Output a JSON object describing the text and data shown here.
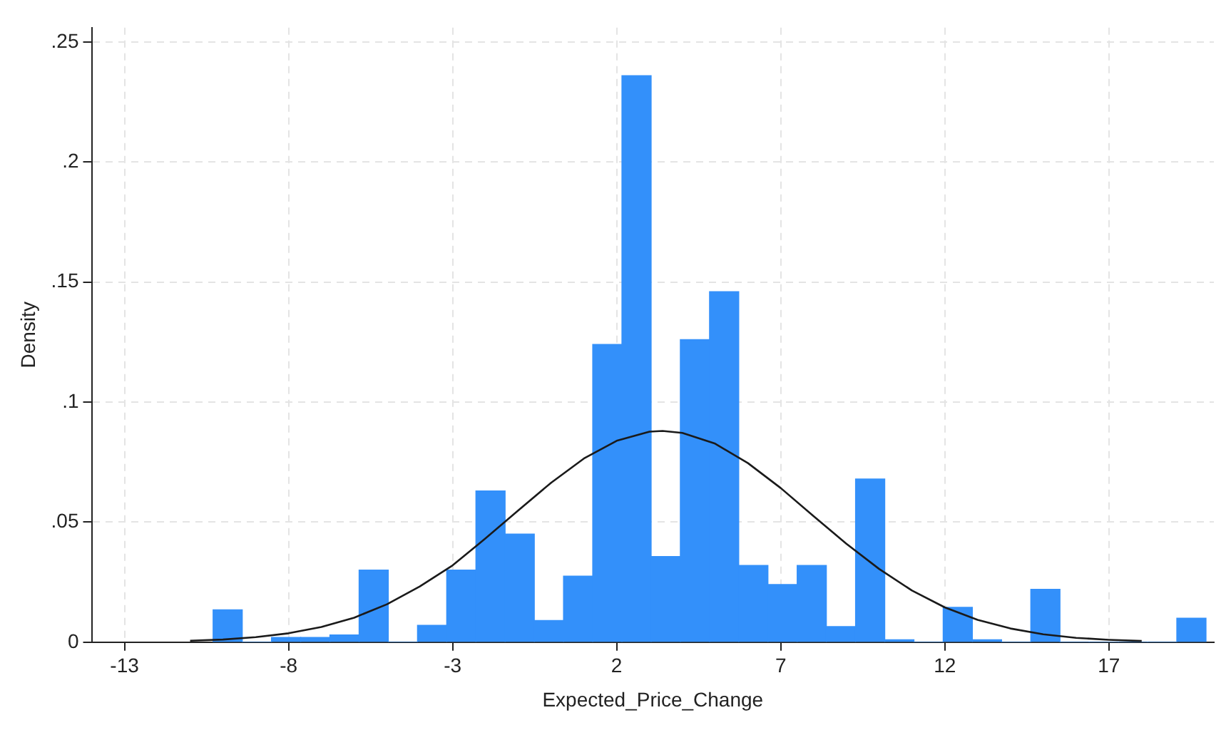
{
  "chart_data": {
    "type": "histogram",
    "xlabel": "Expected_Price_Change",
    "ylabel": "Density",
    "bins": [
      -10.3,
      -9.41,
      -8.52,
      -7.63,
      -6.74,
      -5.85,
      -4.96,
      -4.07,
      -3.18,
      -2.29,
      -1.4,
      -0.51,
      0.38,
      1.27,
      2.16,
      3.05,
      3.94,
      4.83,
      5.72,
      6.61,
      7.5,
      8.39,
      9.28,
      10.17,
      11.06,
      11.95,
      12.84,
      13.73,
      14.62,
      15.51,
      16.4,
      17.29,
      18.18,
      19.07,
      19.96
    ],
    "values": [
      0.0135,
      0,
      0.002,
      0.002,
      0.003,
      0.03,
      0,
      0.007,
      0.03,
      0.063,
      0.045,
      0.009,
      0.0275,
      0.124,
      0.236,
      0.0357,
      0.126,
      0.146,
      0.032,
      0.024,
      0.032,
      0.0065,
      0.068,
      0.001,
      0,
      0.0145,
      0.001,
      0,
      0.022,
      0,
      0,
      0,
      0,
      0.01
    ],
    "color": "#3390fa",
    "series": [
      {
        "type": "line",
        "color": "#1a1a1a",
        "x": [
          -11,
          -10,
          -9,
          -8,
          -7,
          -6,
          -5,
          -4,
          -3,
          -2,
          -1,
          0,
          1,
          2,
          3,
          3.4,
          4,
          5,
          6,
          7,
          8,
          9,
          10,
          11,
          12,
          13,
          14,
          15,
          16,
          17,
          18
        ],
        "values": [
          0.0006,
          0.0011,
          0.0021,
          0.0037,
          0.0063,
          0.0102,
          0.0158,
          0.0232,
          0.032,
          0.0432,
          0.0549,
          0.0664,
          0.0765,
          0.0839,
          0.0877,
          0.088,
          0.0872,
          0.0827,
          0.0746,
          0.0642,
          0.0525,
          0.041,
          0.0305,
          0.0215,
          0.0145,
          0.0093,
          0.0057,
          0.0033,
          0.0018,
          0.001,
          0.0005
        ]
      }
    ],
    "xlim": [
      -14,
      20.2
    ],
    "ylim": [
      0,
      0.256
    ],
    "xticks": [
      -13,
      -8,
      -3,
      2,
      7,
      12,
      17
    ],
    "yticks": [
      0,
      {
        "value": 0.05,
        "label": ".05"
      },
      {
        "value": 0.1,
        "label": ".1"
      },
      {
        "value": 0.15,
        "label": ".15"
      },
      {
        "value": 0.2,
        "label": ".2"
      },
      {
        "value": 0.25,
        "label": ".25"
      }
    ],
    "grid": true
  }
}
